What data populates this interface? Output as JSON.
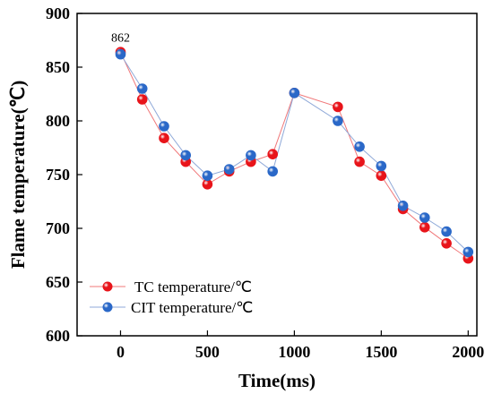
{
  "chart_data": {
    "type": "line",
    "xlabel": "Time(ms)",
    "ylabel": "Flame temperature(℃)",
    "xlim": [
      -250,
      2050
    ],
    "ylim": [
      600,
      900
    ],
    "xticks": [
      0,
      500,
      1000,
      1500,
      2000
    ],
    "yticks": [
      600,
      650,
      700,
      750,
      800,
      850,
      900
    ],
    "x": [
      0,
      125,
      250,
      375,
      500,
      625,
      750,
      875,
      1000,
      1250,
      1375,
      1500,
      1625,
      1750,
      1875,
      2000
    ],
    "series": [
      {
        "name": "TC  temperature/℃",
        "color": "#e8141a",
        "line_color": "#f0787a",
        "values": [
          864,
          820,
          784,
          762,
          741,
          753,
          762,
          769,
          826,
          813,
          762,
          749,
          718,
          701,
          686,
          672
        ]
      },
      {
        "name": "CIT  temperature/℃",
        "color": "#2a68c8",
        "line_color": "#8fa9d8",
        "values": [
          862,
          830,
          795,
          768,
          749,
          755,
          768,
          753,
          826,
          800,
          776,
          758,
          721,
          710,
          697,
          678
        ]
      }
    ],
    "annotations": [
      {
        "x": 0,
        "y": 862,
        "text": "862"
      }
    ],
    "legend_position": "bottom-left",
    "grid": false
  }
}
